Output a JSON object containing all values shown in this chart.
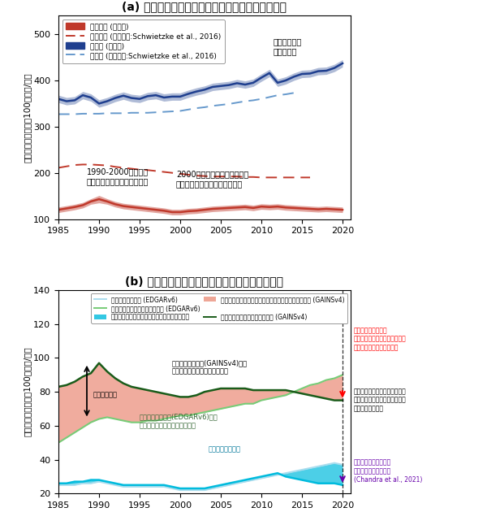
{
  "title_a": "(a) 化石燃料生産および微生物起源放出量の推定値",
  "title_b": "(b) 化石燃料生産に由来する放出量の起源別推定",
  "ylabel_a": "全球メタン放出量（100万トン/年）",
  "ylabel_b": "全球メタン放出量（100万トン/年）",
  "years": [
    1985,
    1986,
    1987,
    1988,
    1989,
    1990,
    1991,
    1992,
    1993,
    1994,
    1995,
    1996,
    1997,
    1998,
    1999,
    2000,
    2001,
    2002,
    2003,
    2004,
    2005,
    2006,
    2007,
    2008,
    2009,
    2010,
    2011,
    2012,
    2013,
    2014,
    2015,
    2016,
    2017,
    2018,
    2019,
    2020
  ],
  "fossil_this_lo": [
    114,
    117,
    120,
    124,
    132,
    135,
    132,
    126,
    122,
    120,
    118,
    116,
    114,
    112,
    109,
    109,
    111,
    112,
    114,
    116,
    117,
    118,
    119,
    120,
    118,
    121,
    120,
    121,
    119,
    118,
    117,
    116,
    115,
    116,
    115,
    114
  ],
  "fossil_this_hi": [
    126,
    129,
    132,
    136,
    144,
    151,
    144,
    138,
    134,
    132,
    130,
    128,
    126,
    124,
    121,
    121,
    123,
    124,
    126,
    128,
    129,
    130,
    131,
    132,
    130,
    133,
    132,
    133,
    131,
    130,
    129,
    128,
    127,
    128,
    127,
    126
  ],
  "fossil_this": [
    120,
    123,
    126,
    130,
    138,
    143,
    138,
    132,
    128,
    126,
    124,
    122,
    120,
    118,
    115,
    115,
    117,
    118,
    120,
    122,
    123,
    124,
    125,
    126,
    124,
    127,
    126,
    127,
    125,
    124,
    123,
    122,
    121,
    122,
    121,
    120
  ],
  "fossil_schw": [
    211,
    214,
    217,
    218,
    218,
    217,
    216,
    213,
    211,
    209,
    207,
    206,
    204,
    202,
    200,
    198,
    196,
    194,
    193,
    192,
    192,
    192,
    192,
    191,
    191,
    190,
    190,
    190,
    190,
    190,
    190,
    190,
    null,
    null,
    null,
    null
  ],
  "microbial_this_lo": [
    352,
    347,
    349,
    360,
    355,
    342,
    347,
    354,
    359,
    354,
    352,
    358,
    360,
    355,
    357,
    357,
    363,
    368,
    372,
    378,
    380,
    382,
    386,
    383,
    387,
    398,
    408,
    387,
    392,
    400,
    406,
    407,
    412,
    413,
    419,
    429
  ],
  "microbial_this_hi": [
    368,
    363,
    365,
    376,
    371,
    358,
    363,
    370,
    375,
    370,
    368,
    374,
    376,
    371,
    373,
    373,
    379,
    384,
    388,
    394,
    396,
    398,
    402,
    399,
    403,
    414,
    424,
    403,
    408,
    416,
    422,
    423,
    428,
    429,
    435,
    445
  ],
  "microbial_this": [
    360,
    355,
    357,
    368,
    363,
    350,
    355,
    362,
    367,
    362,
    360,
    366,
    368,
    363,
    365,
    365,
    371,
    376,
    380,
    386,
    388,
    390,
    394,
    391,
    395,
    406,
    416,
    395,
    400,
    408,
    414,
    415,
    420,
    421,
    427,
    437
  ],
  "microbial_schw": [
    327,
    327,
    327,
    328,
    328,
    328,
    329,
    329,
    329,
    330,
    330,
    330,
    331,
    332,
    333,
    334,
    337,
    340,
    342,
    345,
    347,
    349,
    352,
    355,
    357,
    360,
    364,
    368,
    370,
    373,
    null,
    null,
    null,
    null,
    null,
    null
  ],
  "coal_edgar": [
    25,
    25,
    25,
    26,
    26,
    27,
    26,
    25,
    24,
    24,
    24,
    24,
    24,
    24,
    23,
    22,
    22,
    22,
    22,
    23,
    24,
    25,
    26,
    27,
    28,
    29,
    30,
    31,
    32,
    33,
    34,
    35,
    36,
    37,
    38,
    37
  ],
  "coal_china_adj": [
    26,
    26,
    27,
    27,
    28,
    28,
    27,
    26,
    25,
    25,
    25,
    25,
    25,
    25,
    24,
    23,
    23,
    23,
    23,
    24,
    25,
    26,
    27,
    28,
    29,
    30,
    31,
    32,
    30,
    29,
    28,
    27,
    26,
    26,
    26,
    25
  ],
  "gas_oil_edgar": [
    50,
    53,
    56,
    59,
    62,
    64,
    65,
    64,
    63,
    62,
    62,
    63,
    63,
    64,
    65,
    66,
    66,
    67,
    68,
    69,
    70,
    71,
    72,
    73,
    73,
    75,
    76,
    77,
    78,
    80,
    82,
    84,
    85,
    87,
    88,
    90
  ],
  "gas_oil_gains_top": [
    83,
    84,
    86,
    89,
    91,
    97,
    92,
    88,
    85,
    83,
    82,
    81,
    80,
    79,
    78,
    77,
    77,
    78,
    80,
    81,
    82,
    82,
    82,
    82,
    81,
    81,
    81,
    81,
    81,
    80,
    79,
    78,
    77,
    76,
    75,
    75
  ],
  "gas_oil_gains_dark": [
    83,
    84,
    86,
    89,
    91,
    97,
    92,
    88,
    85,
    83,
    82,
    81,
    80,
    79,
    78,
    77,
    77,
    78,
    80,
    81,
    82,
    82,
    82,
    82,
    81,
    81,
    81,
    81,
    81,
    80,
    79,
    78,
    77,
    76,
    75,
    75
  ],
  "ylim_a": [
    100,
    540
  ],
  "yticks_a": [
    100,
    200,
    300,
    400,
    500
  ],
  "ylim_b": [
    20,
    140
  ],
  "yticks_b": [
    20,
    40,
    60,
    80,
    100,
    120,
    140
  ],
  "color_fossil_this": "#c0392b",
  "color_fossil_schw": "#c0392b",
  "color_microbial_this": "#1f3f8f",
  "color_microbial_schw": "#6699cc",
  "color_coal_edgar": "#aaddee",
  "color_coal_china": "#00bbdd",
  "color_gas_edgar": "#77cc77",
  "color_gas_gains_fill": "#e8806a",
  "color_gas_gains_dark": "#1a5c1a",
  "leg_a0": "化石燃料 (本研究)",
  "leg_a1": "化石燃料 (先行研究:Schwietzke et al., 2016)",
  "leg_a2": "微生物 (本研究)",
  "leg_a3": "微生物 (先行研究:Schwietzke et al., 2016)",
  "leg_b0": "石炭生産由来放出 (EDGARv6)",
  "leg_b1": "中国での放出量を補正した石炭生産由来放出量",
  "leg_b2": "天然ガス・石油由来の放出総量 (EDGARv6)",
  "leg_b3": "シェールガスを除いた天然ガス・石油由来の放出総量 (GAINSv4)",
  "leg_b4": "天然ガス・石油由来の放出総量 (GAINSv4)",
  "ann_a1": "1990-2000年の間、\n化石燃料由来の放出量は減少",
  "ann_a2": "2000年以降、化石燃料由来の\n放出量は大きく変動していない",
  "ann_a3": "微生物由来の\n放出が急増",
  "ann_b1": "既存インベントリ(GAINSv4)での\n天然ガス・石油由来の放出総量",
  "ann_b2": "推計間の差異",
  "ann_b3": "既存インベントリ(EDGARv6)での\n天然ガス・石油由来の放出総量",
  "ann_b4": "石炭生産時の放出",
  "ann_b5": "既存インベントリの\n米国でのシェールガス生産時の\n放出量は過大評価の可能性",
  "ann_b6": "中国での石炭生産時などによる\n増加は、他の生産量由来の減少\nと打ち消し合う形",
  "ann_b7": "中国での石炭生産時の\n放出の過大評価を補正\n(Chandra et al., 2021)"
}
